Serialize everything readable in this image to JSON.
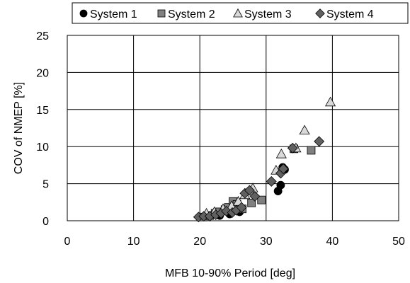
{
  "chart_data": {
    "type": "scatter",
    "title": "",
    "xlabel": "MFB 10-90% Period [deg]",
    "ylabel": "COV of NMEP [%]",
    "xlim": [
      0,
      50
    ],
    "ylim": [
      0,
      25
    ],
    "xticks": [
      0,
      10,
      20,
      30,
      40,
      50
    ],
    "yticks": [
      0,
      5,
      10,
      15,
      20,
      25
    ],
    "grid": true,
    "legend_position": "top",
    "series": [
      {
        "name": "System 1",
        "marker": "circle",
        "color": "#000000",
        "points": [
          [
            31.8,
            4.0
          ],
          [
            32.2,
            4.8
          ],
          [
            32.8,
            6.9
          ],
          [
            32.5,
            7.2
          ],
          [
            26.0,
            1.2
          ],
          [
            24.5,
            0.9
          ],
          [
            23.0,
            0.7
          ]
        ]
      },
      {
        "name": "System 2",
        "marker": "square",
        "color": "#808080",
        "points": [
          [
            20.5,
            0.5
          ],
          [
            21.5,
            0.7
          ],
          [
            22.3,
            1.0
          ],
          [
            23.0,
            1.2
          ],
          [
            23.8,
            1.5
          ],
          [
            24.3,
            1.8
          ],
          [
            25.0,
            2.6
          ],
          [
            25.6,
            2.2
          ],
          [
            26.4,
            1.6
          ],
          [
            27.8,
            2.4
          ],
          [
            29.3,
            2.8
          ],
          [
            36.8,
            9.5
          ],
          [
            34.2,
            9.7
          ]
        ]
      },
      {
        "name": "System 3",
        "marker": "triangle",
        "color": "#d9d9d9",
        "points": [
          [
            21.0,
            1.0
          ],
          [
            22.2,
            1.2
          ],
          [
            23.5,
            1.6
          ],
          [
            24.8,
            2.0
          ],
          [
            25.8,
            2.6
          ],
          [
            26.8,
            3.5
          ],
          [
            28.0,
            4.4
          ],
          [
            31.5,
            6.8
          ],
          [
            32.3,
            9.0
          ],
          [
            34.5,
            9.8
          ],
          [
            35.8,
            12.2
          ],
          [
            39.7,
            16.0
          ]
        ]
      },
      {
        "name": "System 4",
        "marker": "diamond",
        "color": "#606060",
        "points": [
          [
            19.8,
            0.5
          ],
          [
            20.6,
            0.6
          ],
          [
            21.5,
            0.6
          ],
          [
            22.4,
            0.8
          ],
          [
            23.2,
            1.0
          ],
          [
            24.0,
            1.3
          ],
          [
            24.9,
            1.1
          ],
          [
            25.5,
            1.4
          ],
          [
            26.3,
            1.8
          ],
          [
            26.8,
            3.7
          ],
          [
            27.5,
            4.1
          ],
          [
            28.3,
            3.3
          ],
          [
            30.8,
            5.3
          ],
          [
            32.2,
            6.4
          ],
          [
            32.6,
            7.0
          ],
          [
            34.0,
            9.8
          ],
          [
            38.0,
            10.7
          ]
        ]
      }
    ]
  }
}
